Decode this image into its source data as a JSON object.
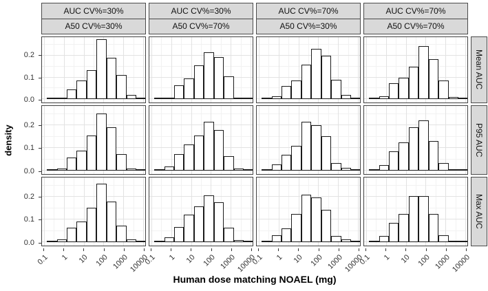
{
  "figure": {
    "xlabel": "Human dose matching NOAEL (mg)",
    "ylabel": "density"
  },
  "facets": {
    "col_strips": [
      {
        "line1": "AUC CV%=30%",
        "line2": "A50 CV%=30%"
      },
      {
        "line1": "AUC CV%=30%",
        "line2": "A50 CV%=70%"
      },
      {
        "line1": "AUC CV%=70%",
        "line2": "A50 CV%=30%"
      },
      {
        "line1": "AUC CV%=70%",
        "line2": "A50 CV%=70%"
      }
    ],
    "row_strips": [
      "Mean AUC",
      "P95 AUC",
      "Max AUC"
    ]
  },
  "style": {
    "strip_bg": "#d9d9d9",
    "panel_border": "#404040",
    "bar_fill": "#ffffff",
    "bar_border": "#1a1a1a",
    "grid_major": "#e2e2e2",
    "grid_minor": "#f2f2f2"
  },
  "chart_data": {
    "type": "bar",
    "chart_kind": "faceted_histogram",
    "title": "",
    "xlabel": "Human dose matching NOAEL (mg)",
    "ylabel": "density",
    "x_scale": "log10",
    "x_tick_values": [
      0.1,
      1,
      10,
      100,
      1000,
      10000
    ],
    "x_tick_labels": [
      "0.1",
      "1",
      "10",
      "100",
      "1000",
      "10000"
    ],
    "y_tick_values": [
      0,
      0.1,
      0.2
    ],
    "y_tick_labels": [
      "0.0",
      "0.1",
      "0.2"
    ],
    "y_minor_ticks": [
      0.05,
      0.15,
      0.25
    ],
    "x_minor_ticks_log10": [
      -0.5,
      0.5,
      1.5,
      2.5,
      3.5
    ],
    "xlim_log10": [
      -1.1,
      4.1
    ],
    "ylim": [
      0,
      0.285
    ],
    "bin_edges_log10": [
      -0.85,
      -0.35,
      0.15,
      0.65,
      1.15,
      1.65,
      2.15,
      2.65,
      3.15,
      3.65,
      4.15
    ],
    "grid": "on",
    "legend": "none",
    "panels": [
      {
        "facet_row": "Mean AUC",
        "facet_col": "AUC CV%=30% | A50 CV%=30%",
        "densities": [
          0.003,
          0.008,
          0.045,
          0.085,
          0.135,
          0.275,
          0.19,
          0.11,
          0.02,
          0.003
        ]
      },
      {
        "facet_row": "Mean AUC",
        "facet_col": "AUC CV%=30% | A50 CV%=70%",
        "densities": [
          0.003,
          0.006,
          0.065,
          0.095,
          0.155,
          0.215,
          0.195,
          0.105,
          0.007,
          0.002
        ]
      },
      {
        "facet_row": "Mean AUC",
        "facet_col": "AUC CV%=70% | A50 CV%=30%",
        "densities": [
          0.002,
          0.012,
          0.06,
          0.085,
          0.16,
          0.23,
          0.2,
          0.09,
          0.02,
          0.003
        ]
      },
      {
        "facet_row": "Mean AUC",
        "facet_col": "AUC CV%=70% | A50 CV%=70%",
        "densities": [
          0.003,
          0.012,
          0.075,
          0.1,
          0.15,
          0.245,
          0.185,
          0.085,
          0.01,
          0.004
        ]
      },
      {
        "facet_row": "P95 AUC",
        "facet_col": "AUC CV%=30% | A50 CV%=30%",
        "densities": [
          0.003,
          0.01,
          0.058,
          0.088,
          0.155,
          0.252,
          0.19,
          0.073,
          0.01,
          0.003
        ]
      },
      {
        "facet_row": "P95 AUC",
        "facet_col": "AUC CV%=30% | A50 CV%=70%",
        "densities": [
          0.003,
          0.018,
          0.074,
          0.115,
          0.155,
          0.215,
          0.18,
          0.065,
          0.01,
          0.003
        ]
      },
      {
        "facet_row": "P95 AUC",
        "facet_col": "AUC CV%=70% | A50 CV%=30%",
        "densities": [
          0.004,
          0.028,
          0.07,
          0.11,
          0.215,
          0.2,
          0.153,
          0.034,
          0.012,
          0.003
        ]
      },
      {
        "facet_row": "P95 AUC",
        "facet_col": "AUC CV%=70% | A50 CV%=70%",
        "densities": [
          0.005,
          0.025,
          0.085,
          0.125,
          0.19,
          0.22,
          0.13,
          0.035,
          0.005,
          0.002
        ]
      },
      {
        "facet_row": "Max AUC",
        "facet_col": "AUC CV%=30% | A50 CV%=30%",
        "densities": [
          0.004,
          0.012,
          0.065,
          0.09,
          0.153,
          0.258,
          0.18,
          0.072,
          0.012,
          0.004
        ]
      },
      {
        "facet_row": "Max AUC",
        "facet_col": "AUC CV%=30% | A50 CV%=70%",
        "densities": [
          0.004,
          0.022,
          0.068,
          0.12,
          0.159,
          0.206,
          0.177,
          0.064,
          0.008,
          0.003
        ]
      },
      {
        "facet_row": "Max AUC",
        "facet_col": "AUC CV%=70% | A50 CV%=30%",
        "densities": [
          0.004,
          0.032,
          0.062,
          0.124,
          0.209,
          0.196,
          0.144,
          0.027,
          0.012,
          0.003
        ]
      },
      {
        "facet_row": "Max AUC",
        "facet_col": "AUC CV%=70% | A50 CV%=70%",
        "densities": [
          0.006,
          0.028,
          0.086,
          0.125,
          0.202,
          0.204,
          0.125,
          0.031,
          0.004,
          0.002
        ]
      }
    ]
  }
}
